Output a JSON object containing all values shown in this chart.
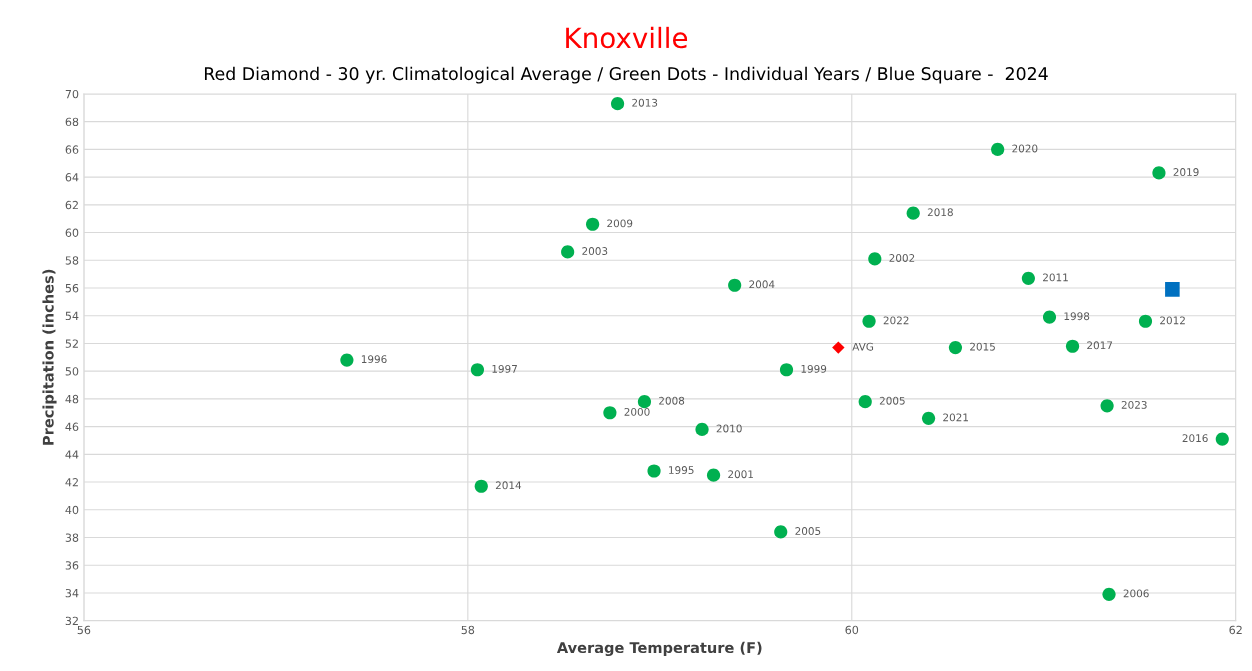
{
  "chart_data": {
    "type": "scatter",
    "title": "Knoxville",
    "subtitle": "Red Diamond - 30 yr. Climatological Average / Green Dots - Individual Years / Blue Square -  2024",
    "xlabel": "Average Temperature (F)",
    "ylabel": "Precipitation (inches)",
    "xlim": [
      56,
      62
    ],
    "xticks": [
      56,
      58,
      60,
      62
    ],
    "ylim": [
      32,
      70
    ],
    "yticks": [
      32,
      34,
      36,
      38,
      40,
      42,
      44,
      46,
      48,
      50,
      52,
      54,
      56,
      58,
      60,
      62,
      64,
      66,
      68,
      70
    ],
    "grid": true,
    "series": [
      {
        "color": "#00b050",
        "marker": "circle",
        "x": [
          58.78,
          58.65,
          58.52,
          59.39,
          57.37,
          58.05,
          58.92,
          58.74,
          59.22,
          58.97,
          59.28,
          58.07,
          59.63,
          60.76,
          61.6,
          60.32,
          60.12,
          60.92,
          60.09,
          61.03,
          61.53,
          60.54,
          61.15,
          59.66,
          60.07,
          60.4,
          61.33,
          61.93,
          61.34
        ],
        "values": [
          69.3,
          60.6,
          58.6,
          56.2,
          50.8,
          50.1,
          47.8,
          47.0,
          45.8,
          42.8,
          42.5,
          41.7,
          38.4,
          66.0,
          64.3,
          61.4,
          58.1,
          56.7,
          53.6,
          53.9,
          53.6,
          51.7,
          51.8,
          50.1,
          47.8,
          46.6,
          47.5,
          45.1,
          33.9
        ]
      },
      {
        "color": "#ff0000",
        "marker": "diamond",
        "x": [
          59.93
        ],
        "values": [
          51.7
        ]
      },
      {
        "color": "#0070c0",
        "marker": "square",
        "x": [
          61.67
        ],
        "values": [
          55.9
        ]
      }
    ],
    "annotations": [
      {
        "text": "2013",
        "x": 58.78,
        "y": 69.3
      },
      {
        "text": "2009",
        "x": 58.65,
        "y": 60.6
      },
      {
        "text": "2003",
        "x": 58.52,
        "y": 58.6
      },
      {
        "text": "2004",
        "x": 59.39,
        "y": 56.2
      },
      {
        "text": "1996",
        "x": 57.37,
        "y": 50.8
      },
      {
        "text": "1997",
        "x": 58.05,
        "y": 50.1
      },
      {
        "text": "2008",
        "x": 58.92,
        "y": 47.8
      },
      {
        "text": "2000",
        "x": 58.74,
        "y": 47.0
      },
      {
        "text": "2010",
        "x": 59.22,
        "y": 45.8
      },
      {
        "text": "1995",
        "x": 58.97,
        "y": 42.8
      },
      {
        "text": "2001",
        "x": 59.28,
        "y": 42.5
      },
      {
        "text": "2014",
        "x": 58.07,
        "y": 41.7
      },
      {
        "text": "2005",
        "x": 59.63,
        "y": 38.4
      },
      {
        "text": "2020",
        "x": 60.76,
        "y": 66.0
      },
      {
        "text": "2019",
        "x": 61.6,
        "y": 64.3
      },
      {
        "text": "2018",
        "x": 60.32,
        "y": 61.4
      },
      {
        "text": "2002",
        "x": 60.12,
        "y": 58.1
      },
      {
        "text": "2011",
        "x": 60.92,
        "y": 56.7
      },
      {
        "text": "2022",
        "x": 60.09,
        "y": 53.6
      },
      {
        "text": "1998",
        "x": 61.03,
        "y": 53.9
      },
      {
        "text": "2012",
        "x": 61.53,
        "y": 53.6
      },
      {
        "text": "2015",
        "x": 60.54,
        "y": 51.7
      },
      {
        "text": "2017",
        "x": 61.15,
        "y": 51.8
      },
      {
        "text": "1999",
        "x": 59.66,
        "y": 50.1
      },
      {
        "text": "2005",
        "x": 60.07,
        "y": 47.8
      },
      {
        "text": "2021",
        "x": 60.4,
        "y": 46.6
      },
      {
        "text": "2023",
        "x": 61.33,
        "y": 47.5
      },
      {
        "text": "2016",
        "x": 61.93,
        "y": 45.1
      },
      {
        "text": "2006",
        "x": 61.34,
        "y": 33.9
      },
      {
        "text": "AVG",
        "x": 59.93,
        "y": 51.7
      }
    ]
  }
}
